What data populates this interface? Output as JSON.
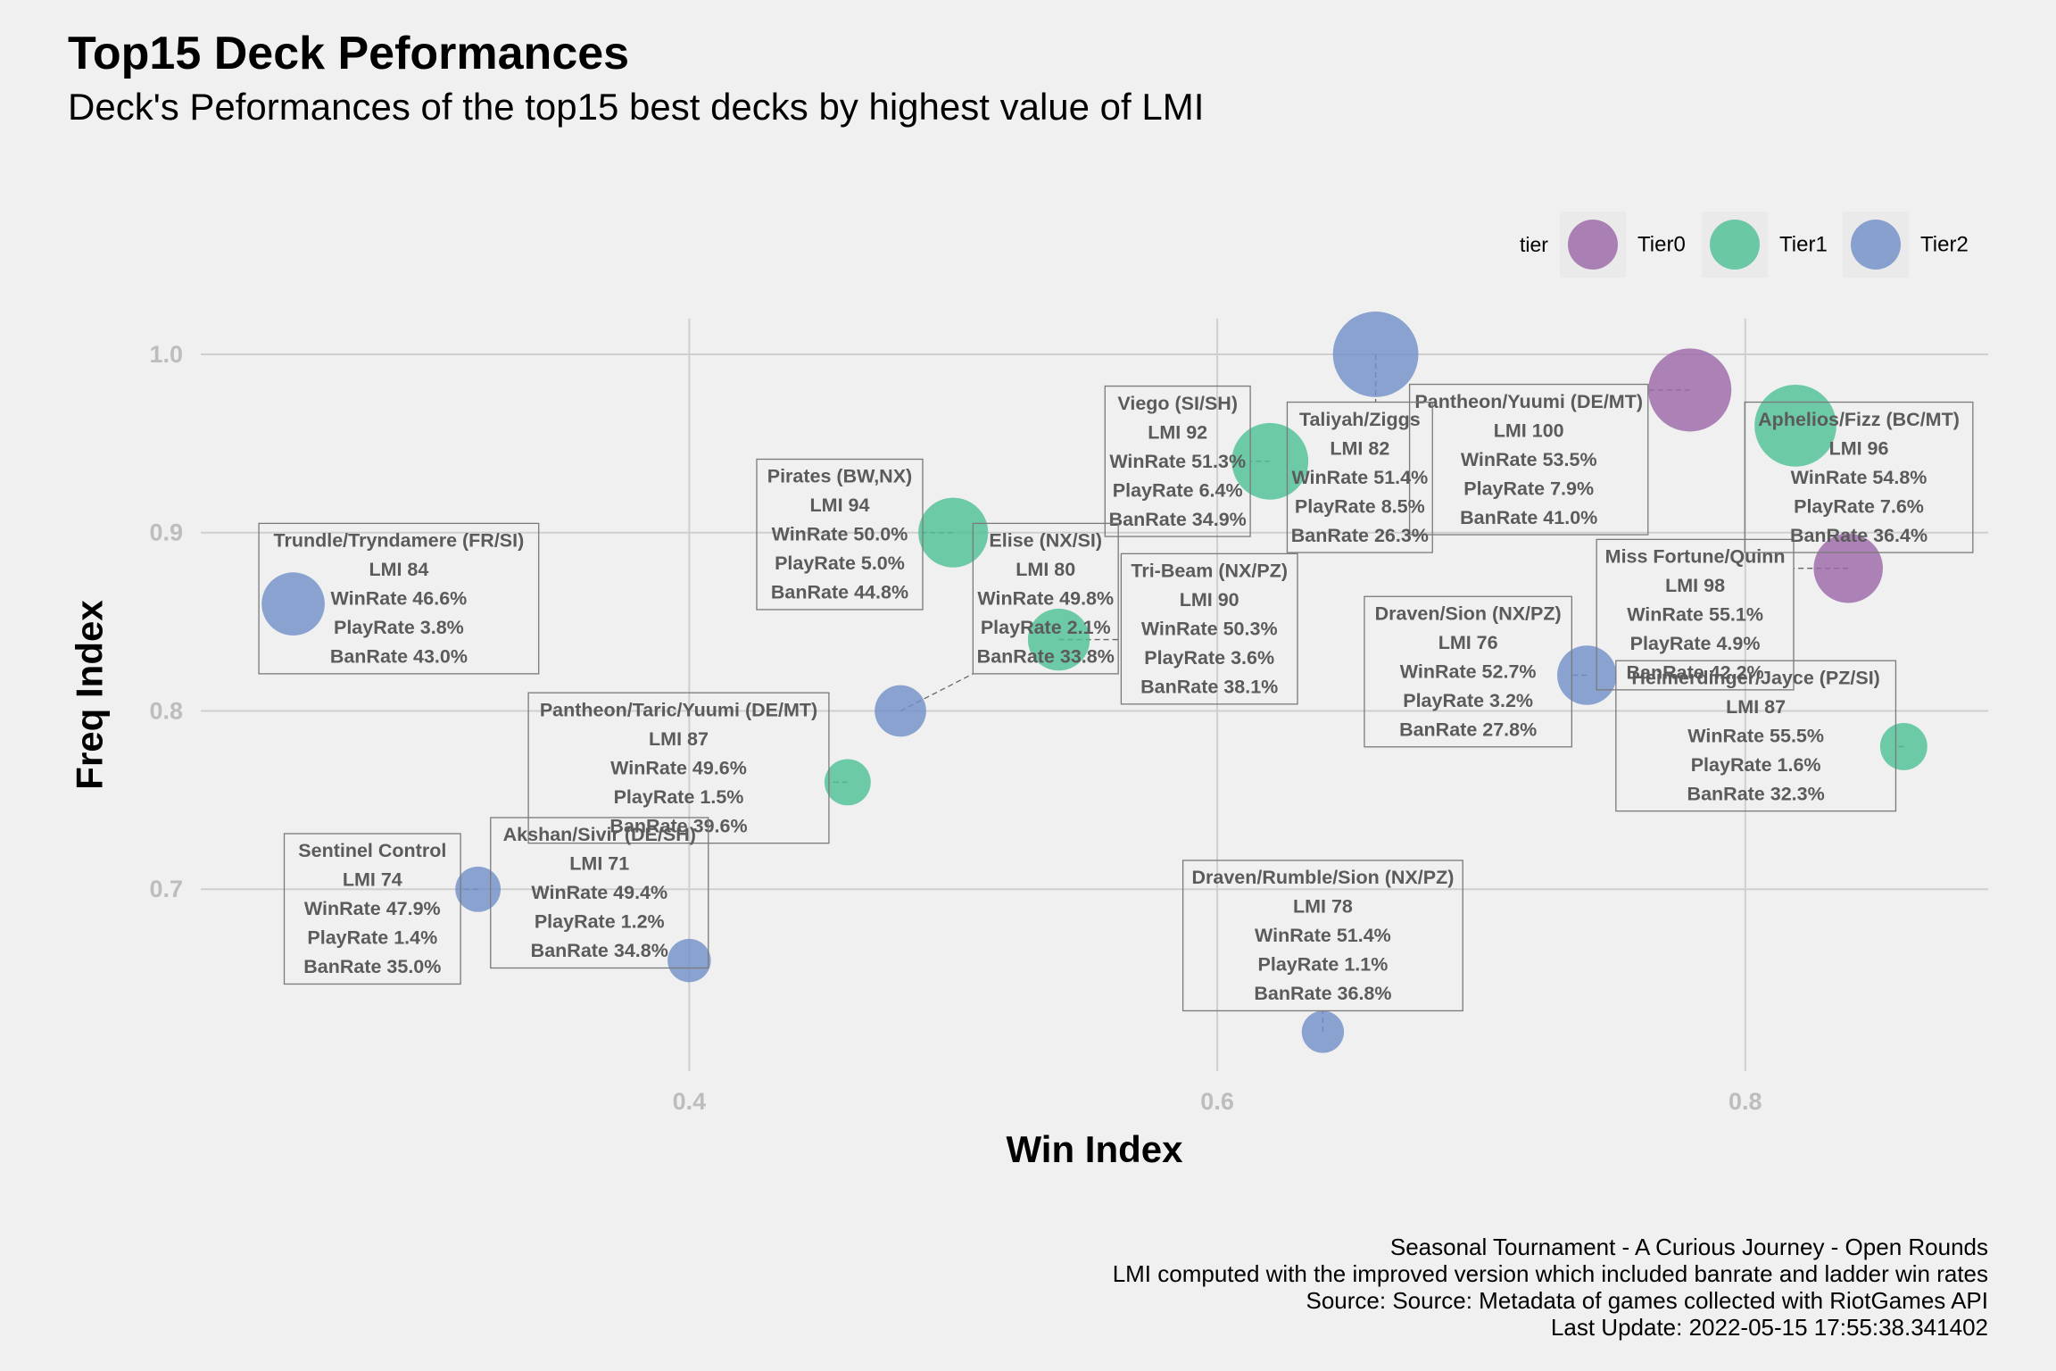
{
  "title": "Top15 Deck Peformances",
  "subtitle": "Deck's Peformances of the top15 best decks by highest value of LMI",
  "caption": [
    "Seasonal Tournament - A Curious Journey - Open Rounds",
    "LMI computed with the improved version which included banrate and ladder win rates",
    "Source: Source: Metadata of games collected with RiotGames API",
    "Last Update: 2022-05-15 17:55:38.341402"
  ],
  "chart_data": {
    "type": "scatter",
    "xlabel": "Win Index",
    "ylabel": "Freq Index",
    "xlim": [
      0.215,
      0.892
    ],
    "ylim": [
      0.598,
      1.02
    ],
    "xticks": [
      0.4,
      0.6,
      0.8
    ],
    "yticks": [
      0.7,
      0.8,
      0.9,
      1.0
    ],
    "xtick_labels": [
      "0.4",
      "0.6",
      "0.8"
    ],
    "ytick_labels": [
      "0.7",
      "0.8",
      "0.9",
      "1.0"
    ],
    "grid": true,
    "legend": {
      "title": "tier",
      "position": "top-right",
      "entries": [
        {
          "name": "Tier0",
          "color": "#9c69a8"
        },
        {
          "name": "Tier1",
          "color": "#4fc195"
        },
        {
          "name": "Tier2",
          "color": "#7190c8"
        }
      ]
    },
    "points": [
      {
        "deck": "Pantheon/Yuumi (DE/MT)",
        "tier": "Tier0",
        "x": 0.779,
        "y": 0.98,
        "size": 7.9,
        "label": [
          "Pantheon/Yuumi (DE/MT)",
          "LMI 100",
          "WinRate 53.5%",
          "PlayRate 7.9%",
          "BanRate 41.0%"
        ],
        "label_at": [
          0.718,
          0.941
        ]
      },
      {
        "deck": "Miss Fortune/Quinn",
        "tier": "Tier0",
        "x": 0.839,
        "y": 0.88,
        "size": 4.9,
        "label": [
          "Miss Fortune/Quinn",
          "LMI 98",
          "WinRate 55.1%",
          "PlayRate 4.9%",
          "BanRate 42.2%"
        ],
        "label_at": [
          0.781,
          0.854
        ]
      },
      {
        "deck": "Aphelios/Fizz (BC/MT)",
        "tier": "Tier1",
        "x": 0.819,
        "y": 0.96,
        "size": 7.6,
        "label": [
          "Aphelios/Fizz (BC/MT)",
          "LMI 96",
          "WinRate 54.8%",
          "PlayRate 7.6%",
          "BanRate 36.4%"
        ],
        "label_at": [
          0.843,
          0.931
        ]
      },
      {
        "deck": "Pirates (BW,NX)",
        "tier": "Tier1",
        "x": 0.5,
        "y": 0.9,
        "size": 5.0,
        "label": [
          "Pirates (BW,NX)",
          "LMI 94",
          "WinRate 50.0%",
          "PlayRate 5.0%",
          "BanRate 44.8%"
        ],
        "label_at": [
          0.457,
          0.899
        ]
      },
      {
        "deck": "Viego (SI/SH)",
        "tier": "Tier1",
        "x": 0.62,
        "y": 0.94,
        "size": 6.4,
        "label": [
          "Viego (SI/SH)",
          "LMI 92",
          "WinRate 51.3%",
          "PlayRate 6.4%",
          "BanRate 34.9%"
        ],
        "label_at": [
          0.585,
          0.94
        ]
      },
      {
        "deck": "Tri-Beam (NX/PZ)",
        "tier": "Tier1",
        "x": 0.54,
        "y": 0.84,
        "size": 3.6,
        "label": [
          "Tri-Beam (NX/PZ)",
          "LMI 90",
          "WinRate 50.3%",
          "PlayRate 3.6%",
          "BanRate 38.1%"
        ],
        "label_at": [
          0.597,
          0.846
        ]
      },
      {
        "deck": "Pantheon/Taric/Yuumi (DE/MT)",
        "tier": "Tier1",
        "x": 0.46,
        "y": 0.76,
        "size": 1.5,
        "label": [
          "Pantheon/Taric/Yuumi (DE/MT)",
          "LMI 87",
          "WinRate 49.6%",
          "PlayRate 1.5%",
          "BanRate 39.6%"
        ],
        "label_at": [
          0.396,
          0.768
        ]
      },
      {
        "deck": "Heimerdinger/Jayce (PZ/SI)",
        "tier": "Tier1",
        "x": 0.86,
        "y": 0.78,
        "size": 1.6,
        "label": [
          "Heimerdinger/Jayce (PZ/SI)",
          "LMI 87",
          "WinRate 55.5%",
          "PlayRate 1.6%",
          "BanRate 32.3%"
        ],
        "label_at": [
          0.804,
          0.786
        ]
      },
      {
        "deck": "Trundle/Tryndamere (FR/SI)",
        "tier": "Tier2",
        "x": 0.25,
        "y": 0.86,
        "size": 3.8,
        "label": [
          "Trundle/Tryndamere (FR/SI)",
          "LMI 84",
          "WinRate 46.6%",
          "PlayRate 3.8%",
          "BanRate 43.0%"
        ],
        "label_at": [
          0.29,
          0.863
        ]
      },
      {
        "deck": "Taliyah/Ziggs",
        "tier": "Tier2",
        "x": 0.66,
        "y": 1.0,
        "size": 8.5,
        "label": [
          "Taliyah/Ziggs",
          "LMI 82",
          "WinRate 51.4%",
          "PlayRate 8.5%",
          "BanRate 26.3%"
        ],
        "label_at": [
          0.654,
          0.931
        ]
      },
      {
        "deck": "Elise (NX/SI)",
        "tier": "Tier2",
        "x": 0.48,
        "y": 0.8,
        "size": 2.1,
        "label": [
          "Elise (NX/SI)",
          "LMI 80",
          "WinRate 49.8%",
          "PlayRate 2.1%",
          "BanRate 33.8%"
        ],
        "label_at": [
          0.535,
          0.863
        ]
      },
      {
        "deck": "Draven/Rumble/Sion (NX/PZ)",
        "tier": "Tier2",
        "x": 0.64,
        "y": 0.62,
        "size": 1.1,
        "label": [
          "Draven/Rumble/Sion (NX/PZ)",
          "LMI 78",
          "WinRate 51.4%",
          "PlayRate 1.1%",
          "BanRate 36.8%"
        ],
        "label_at": [
          0.64,
          0.674
        ]
      },
      {
        "deck": "Draven/Sion (NX/PZ)",
        "tier": "Tier2",
        "x": 0.74,
        "y": 0.82,
        "size": 3.2,
        "label": [
          "Draven/Sion (NX/PZ)",
          "LMI 76",
          "WinRate 52.7%",
          "PlayRate 3.2%",
          "BanRate 27.8%"
        ],
        "label_at": [
          0.695,
          0.822
        ]
      },
      {
        "deck": "Sentinel Control",
        "tier": "Tier2",
        "x": 0.32,
        "y": 0.7,
        "size": 1.4,
        "label": [
          "Sentinel Control",
          "LMI 74",
          "WinRate 47.9%",
          "PlayRate 1.4%",
          "BanRate 35.0%"
        ],
        "label_at": [
          0.28,
          0.689
        ]
      },
      {
        "deck": "Akshan/Sivir (DE/SH)",
        "tier": "Tier2",
        "x": 0.4,
        "y": 0.66,
        "size": 1.2,
        "label": [
          "Akshan/Sivir (DE/SH)",
          "LMI 71",
          "WinRate 49.4%",
          "PlayRate 1.2%",
          "BanRate 34.8%"
        ],
        "label_at": [
          0.366,
          0.698
        ]
      }
    ]
  }
}
